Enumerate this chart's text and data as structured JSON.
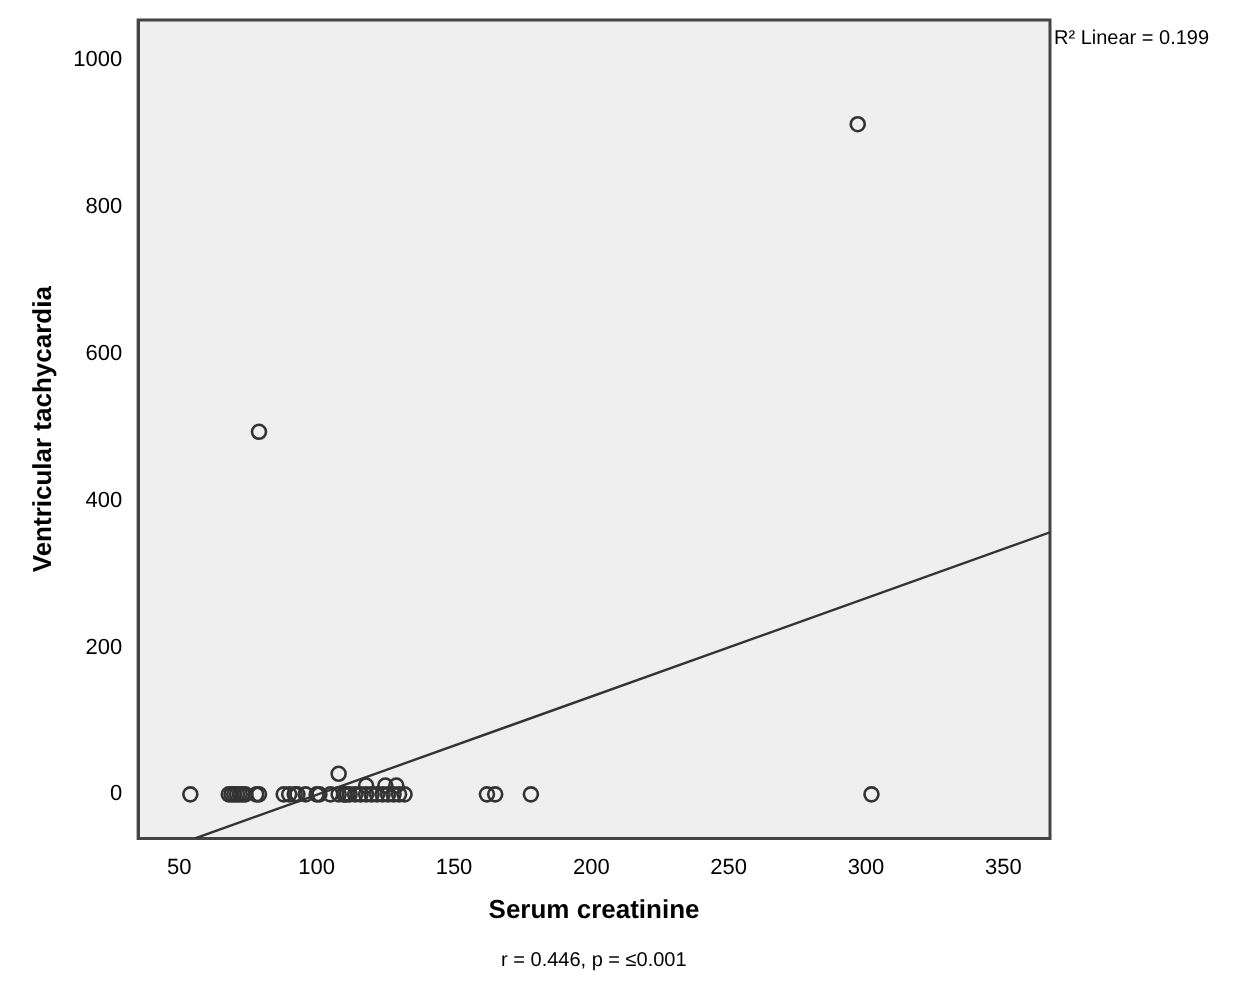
{
  "chart_data": {
    "type": "scatter",
    "xlabel": "Serum creatinine",
    "ylabel": "Ventricular tachycardia",
    "annotations": [
      "R² Linear = 0.199",
      "r = 0.446, p = ≤0.001"
    ],
    "series": [
      {
        "color": "#333333",
        "marker": "circle",
        "x": [
          54,
          68,
          69,
          70,
          71,
          72,
          73,
          74,
          78,
          79,
          88,
          90,
          92,
          93,
          96,
          100,
          101,
          105,
          108,
          110,
          110,
          111,
          112,
          114,
          116,
          118,
          120,
          122,
          124,
          126,
          128,
          130,
          132,
          162,
          165,
          178,
          302,
          108,
          118,
          125,
          129,
          79,
          297
        ],
        "values": [
          0,
          0,
          0,
          0,
          0,
          0,
          0,
          0,
          0,
          0,
          0,
          0,
          0,
          0,
          0,
          0,
          0,
          0,
          0,
          0,
          0,
          0,
          0,
          0,
          0,
          0,
          0,
          0,
          0,
          0,
          0,
          0,
          0,
          0,
          0,
          0,
          0,
          28,
          12,
          12,
          12,
          494,
          913
        ]
      },
      {
        "type": "line",
        "color": "#333333",
        "marker": "none",
        "x": [
          55.7,
          367
        ],
        "values": [
          -60,
          357
        ]
      }
    ],
    "xlim": [
      35,
      367
    ],
    "ylim": [
      -60,
      1055
    ],
    "xticks": [
      50,
      100,
      150,
      200,
      250,
      300,
      350
    ],
    "yticks": [
      0,
      200,
      400,
      600,
      800,
      1000
    ],
    "grid": false,
    "legend": false
  }
}
